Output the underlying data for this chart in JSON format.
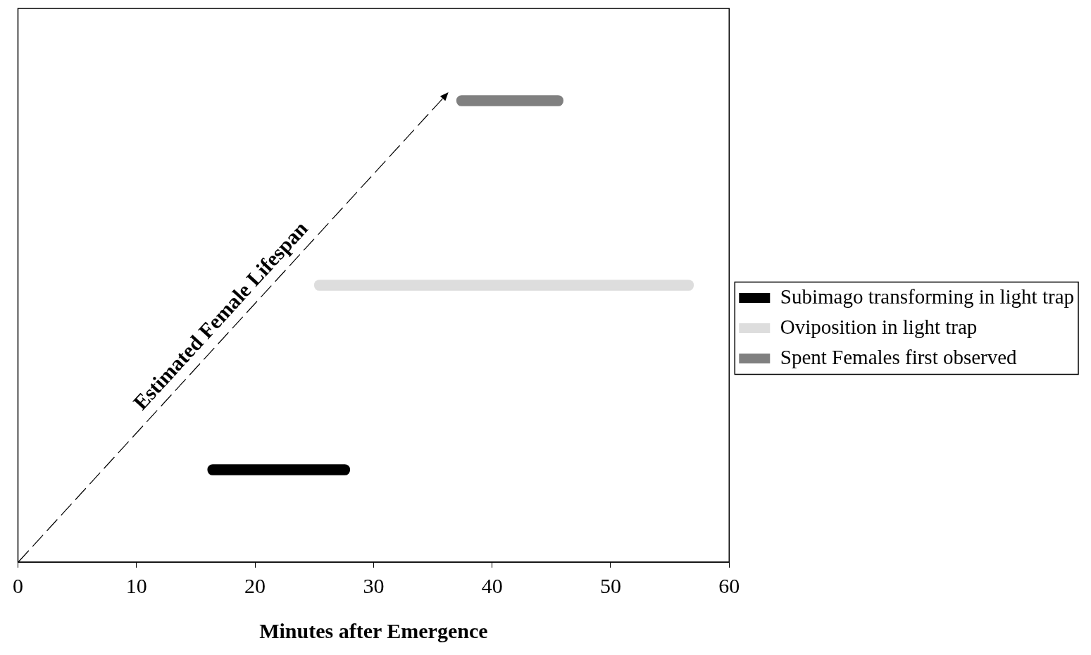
{
  "chart_data": {
    "type": "bar",
    "orientation": "horizontal",
    "stacked": true,
    "categories": [
      null,
      null,
      null
    ],
    "series": [
      {
        "name": "Subimago transforming in light trap",
        "color": "#000000",
        "values": [
          null,
          null,
          12
        ],
        "base": [
          null,
          null,
          16
        ]
      },
      {
        "name": "Oviposition in light trap",
        "color": "#dddddd",
        "values": [
          null,
          32,
          null
        ],
        "base": [
          null,
          25,
          null
        ]
      },
      {
        "name": "Spent Females first observed",
        "color": "#808080",
        "values": [
          9,
          null,
          null
        ],
        "base": [
          37,
          null,
          null
        ]
      }
    ],
    "xlabel": "Minutes after Emergence",
    "xlim": [
      0,
      60
    ],
    "xticks": [
      0,
      10,
      20,
      30,
      40,
      50,
      60
    ],
    "grid": false,
    "legend": "right",
    "tick_labels": "x",
    "annotations": [
      "Estimated Female Lifespan"
    ]
  }
}
